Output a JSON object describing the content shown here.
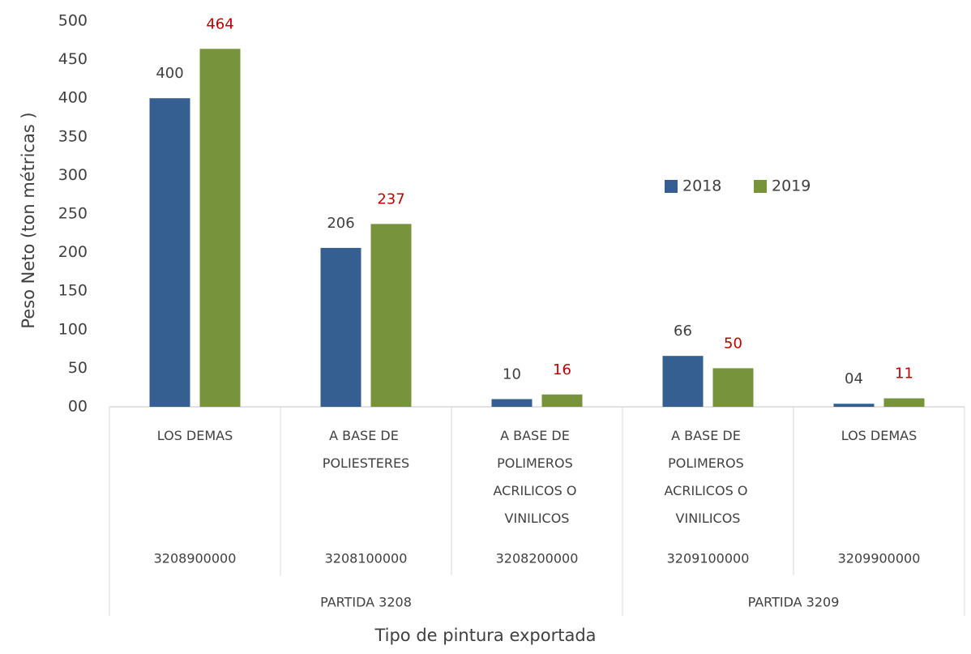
{
  "chart_data": {
    "type": "bar",
    "x_label": "Tipo de pintura exportada",
    "y_label": "Peso Neto (ton métricas )",
    "categories": [
      "LOS DEMAS",
      "A BASE DE POLIESTERES",
      "A BASE DE POLIMEROS ACRILICOS O VINILICOS",
      "A BASE DE POLIMEROS ACRILICOS O VINILICOS",
      "LOS DEMAS"
    ],
    "codes": [
      "3208900000",
      "3208100000",
      "3208200000",
      "3209100000",
      "3209900000"
    ],
    "groups": [
      {
        "name": "PARTIDA 3208",
        "count": 3
      },
      {
        "name": "PARTIDA 3209",
        "count": 2
      }
    ],
    "series": [
      {
        "name": "2018",
        "color": "#365f91",
        "label_color": "#404040",
        "values": [
          400,
          206,
          10,
          66,
          4
        ],
        "value_labels": [
          "400",
          "206",
          "10",
          "66",
          "04"
        ]
      },
      {
        "name": "2019",
        "color": "#77933c",
        "label_color": "#c00000",
        "values": [
          464,
          237,
          16,
          50,
          11
        ]
      }
    ],
    "ylim": [
      0,
      500
    ],
    "yticks": [
      {
        "value": 0,
        "label": "00"
      },
      50,
      100,
      150,
      200,
      250,
      300,
      350,
      400,
      450,
      500
    ],
    "grid": false,
    "legend": "upper right"
  }
}
